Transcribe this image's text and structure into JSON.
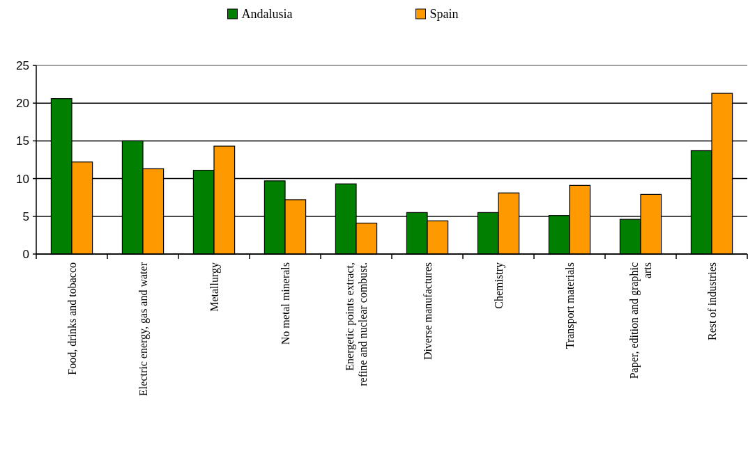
{
  "chart_data": {
    "type": "bar",
    "categories": [
      "Food, drinks and tobacco",
      "Electric energy, gas and water",
      "Metallurgy",
      "No metal minerals",
      "Energetic points extract, refine and nuclear combust.",
      "Diverse manufactures",
      "Chemistry",
      "Transport materials",
      "Paper, edition and graphic arts",
      "Rest of industries"
    ],
    "series": [
      {
        "name": "Andalusia",
        "color": "#007f00",
        "values": [
          20.6,
          15.0,
          11.1,
          9.7,
          9.3,
          5.5,
          5.5,
          5.1,
          4.6,
          13.7
        ]
      },
      {
        "name": "Spain",
        "color": "#ff9900",
        "values": [
          12.2,
          11.3,
          14.3,
          7.2,
          4.1,
          4.4,
          8.1,
          9.1,
          7.9,
          21.3
        ]
      }
    ],
    "ylim": [
      0,
      25
    ],
    "yticks": [
      0,
      5,
      10,
      15,
      20,
      25
    ],
    "grid": "y",
    "legend": "top"
  }
}
